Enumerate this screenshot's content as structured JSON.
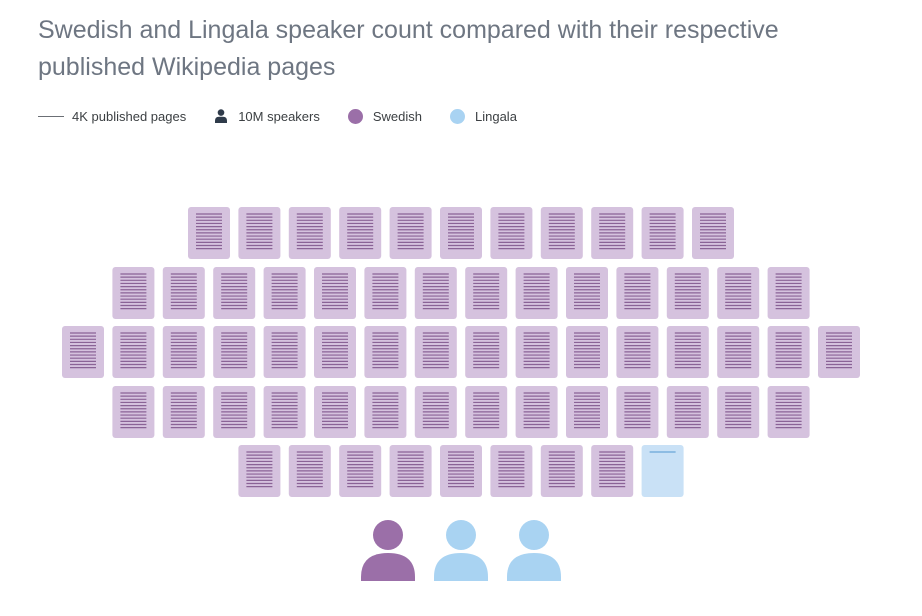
{
  "title": "Swedish and Lingala speaker count compared with their respective published Wikipedia pages",
  "legend": {
    "pages": "4K published pages",
    "speakers": "10M speakers",
    "swedish": "Swedish",
    "lingala": "Lingala"
  },
  "icons": {
    "page": "document-icon",
    "speaker": "person-icon"
  },
  "colors": {
    "swedish_fill": "#d5c2de",
    "swedish_lines": "#8a6396",
    "swedish_person": "#9b6fa8",
    "lingala_fill": "#c9e1f6",
    "lingala_lines": "#6aa7d8",
    "lingala_person": "#a9d3f2",
    "legend_person": "#2f3b4a"
  },
  "chart_data": {
    "type": "pictogram",
    "page_unit": 4000,
    "speaker_unit": 10000000,
    "series": [
      {
        "name": "Swedish",
        "pages_icons": 63.0,
        "speaker_icons": 1
      },
      {
        "name": "Lingala",
        "pages_icons": 0.1,
        "speaker_icons": 2
      }
    ]
  }
}
